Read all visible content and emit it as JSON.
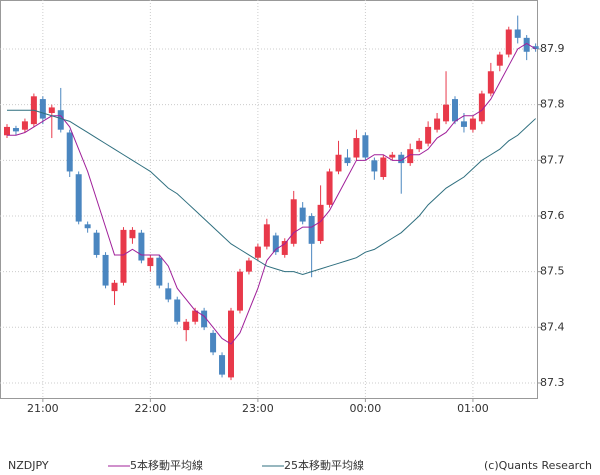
{
  "chart_data": {
    "type": "candlestick",
    "symbol": "NZDJPY",
    "copyright": "(c)Quants Research",
    "categories": [
      null,
      null,
      null,
      null,
      "21:00",
      null,
      null,
      null,
      null,
      null,
      null,
      null,
      null,
      null,
      null,
      null,
      "22:00",
      null,
      null,
      null,
      null,
      null,
      null,
      null,
      null,
      null,
      null,
      null,
      "23:00",
      null,
      null,
      null,
      null,
      null,
      null,
      null,
      null,
      null,
      null,
      null,
      "00:00",
      null,
      null,
      null,
      null,
      null,
      null,
      null,
      null,
      null,
      null,
      null,
      "01:00",
      null,
      null,
      null,
      null,
      null,
      null,
      null
    ],
    "ylim": [
      87.273,
      87.988
    ],
    "yticks": [
      87.3,
      87.4,
      87.5,
      87.6,
      87.7,
      87.8,
      87.9
    ],
    "grid": true,
    "series": [
      {
        "type": "candlestick",
        "up_color": "#e8394a",
        "down_color": "#4a86c0",
        "open": [
          87.745,
          87.758,
          87.755,
          87.765,
          87.81,
          87.785,
          87.79,
          87.75,
          87.675,
          87.585,
          87.57,
          87.53,
          87.465,
          87.48,
          87.56,
          87.57,
          87.51,
          87.525,
          87.47,
          87.45,
          87.395,
          87.41,
          87.43,
          87.39,
          87.35,
          87.31,
          87.43,
          87.5,
          87.525,
          87.545,
          87.565,
          87.53,
          87.55,
          87.615,
          87.6,
          87.555,
          87.62,
          87.68,
          87.705,
          87.705,
          87.745,
          87.7,
          87.67,
          87.705,
          87.71,
          87.695,
          87.72,
          87.73,
          87.755,
          87.77,
          87.81,
          87.77,
          87.755,
          87.77,
          87.82,
          87.87,
          87.89,
          87.935,
          87.92,
          87.905
        ],
        "high": [
          87.765,
          87.762,
          87.775,
          87.82,
          87.815,
          87.8,
          87.83,
          87.755,
          87.68,
          87.59,
          87.575,
          87.535,
          87.485,
          87.58,
          87.58,
          87.575,
          87.53,
          87.53,
          87.48,
          87.455,
          87.415,
          87.435,
          87.435,
          87.395,
          87.355,
          87.435,
          87.505,
          87.525,
          87.55,
          87.595,
          87.57,
          87.56,
          87.645,
          87.625,
          87.605,
          87.655,
          87.685,
          87.735,
          87.72,
          87.755,
          87.75,
          87.705,
          87.71,
          87.715,
          87.715,
          87.73,
          87.74,
          87.77,
          87.785,
          87.86,
          87.815,
          87.785,
          87.78,
          87.825,
          87.875,
          87.895,
          87.94,
          87.96,
          87.925,
          87.91
        ],
        "low": [
          87.74,
          87.745,
          87.75,
          87.76,
          87.765,
          87.74,
          87.75,
          87.67,
          87.585,
          87.57,
          87.525,
          87.47,
          87.44,
          87.475,
          87.55,
          87.515,
          87.5,
          87.47,
          87.445,
          87.405,
          87.375,
          87.405,
          87.395,
          87.35,
          87.31,
          87.305,
          87.425,
          87.495,
          87.52,
          87.54,
          87.53,
          87.525,
          87.545,
          87.585,
          87.49,
          87.55,
          87.615,
          87.675,
          87.69,
          87.7,
          87.7,
          87.665,
          87.665,
          87.7,
          87.64,
          87.69,
          87.715,
          87.725,
          87.75,
          87.765,
          87.765,
          87.75,
          87.75,
          87.765,
          87.815,
          87.86,
          87.885,
          87.91,
          87.88,
          87.895
        ],
        "close": [
          87.76,
          87.752,
          87.77,
          87.815,
          87.775,
          87.795,
          87.755,
          87.68,
          87.59,
          87.578,
          87.53,
          87.475,
          87.48,
          87.575,
          87.575,
          87.52,
          87.525,
          87.475,
          87.45,
          87.41,
          87.41,
          87.43,
          87.4,
          87.355,
          87.315,
          87.43,
          87.5,
          87.52,
          87.545,
          87.585,
          87.535,
          87.555,
          87.63,
          87.59,
          87.55,
          87.62,
          87.68,
          87.71,
          87.695,
          87.74,
          87.705,
          87.68,
          87.705,
          87.71,
          87.695,
          87.72,
          87.735,
          87.76,
          87.775,
          87.8,
          87.77,
          87.76,
          87.775,
          87.82,
          87.86,
          87.89,
          87.935,
          87.92,
          87.895,
          87.9
        ]
      },
      {
        "type": "line",
        "name": "5本移動平均線",
        "color": "#a0209a",
        "values": [
          87.745,
          87.745,
          87.75,
          87.76,
          87.77,
          87.78,
          87.78,
          87.76,
          87.72,
          87.68,
          87.63,
          87.58,
          87.53,
          87.53,
          87.54,
          87.53,
          87.53,
          87.53,
          87.51,
          87.47,
          87.45,
          87.43,
          87.42,
          87.4,
          87.38,
          87.37,
          87.39,
          87.43,
          87.47,
          87.52,
          87.54,
          87.55,
          87.57,
          87.58,
          87.58,
          87.59,
          87.61,
          87.64,
          87.67,
          87.7,
          87.7,
          87.71,
          87.71,
          87.7,
          87.7,
          87.71,
          87.71,
          87.72,
          87.74,
          87.75,
          87.77,
          87.78,
          87.78,
          87.79,
          87.81,
          87.84,
          87.87,
          87.9,
          87.91,
          87.9
        ]
      },
      {
        "type": "line",
        "name": "25本移動平均線",
        "color": "#2f6f7f",
        "values": [
          87.79,
          87.79,
          87.79,
          87.79,
          87.785,
          87.78,
          87.775,
          87.77,
          87.76,
          87.75,
          87.74,
          87.73,
          87.72,
          87.71,
          87.7,
          87.69,
          87.68,
          87.665,
          87.65,
          87.64,
          87.625,
          87.61,
          87.595,
          87.58,
          87.565,
          87.55,
          87.54,
          87.53,
          87.52,
          87.51,
          87.505,
          87.5,
          87.5,
          87.495,
          87.5,
          87.505,
          87.51,
          87.515,
          87.52,
          87.525,
          87.535,
          87.54,
          87.55,
          87.56,
          87.57,
          87.585,
          87.6,
          87.62,
          87.635,
          87.65,
          87.66,
          87.67,
          87.685,
          87.7,
          87.71,
          87.72,
          87.735,
          87.745,
          87.76,
          87.775
        ]
      }
    ]
  }
}
